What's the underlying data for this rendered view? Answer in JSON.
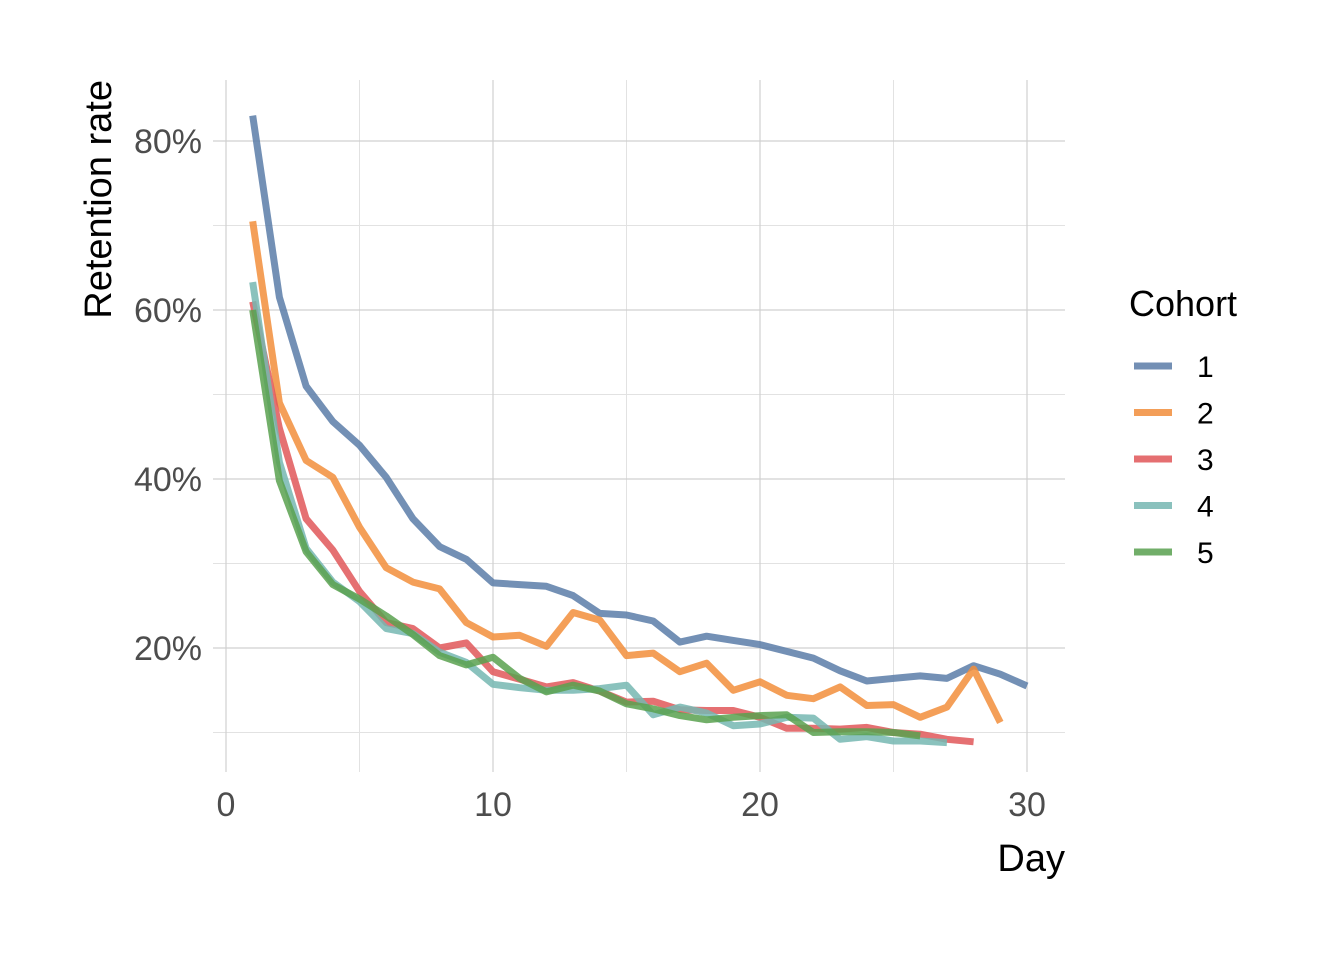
{
  "chart_data": {
    "type": "line",
    "xlabel": "Day",
    "ylabel": "Retention rate",
    "xlim": [
      0,
      31
    ],
    "ylim": [
      0.05,
      0.87
    ],
    "x_ticks": [
      0,
      10,
      20,
      30
    ],
    "x_tick_labels": [
      "0",
      "10",
      "20",
      "30"
    ],
    "y_ticks": [
      0.2,
      0.4,
      0.6,
      0.8
    ],
    "y_tick_labels": [
      "20%",
      "40%",
      "60%",
      "80%"
    ],
    "grid": true,
    "legend": {
      "title": "Cohort",
      "position": "right"
    },
    "series": [
      {
        "name": "1",
        "color": "#5b7ca8",
        "x": [
          1,
          2,
          3,
          4,
          5,
          6,
          7,
          8,
          9,
          10,
          11,
          12,
          13,
          14,
          15,
          16,
          17,
          18,
          19,
          20,
          21,
          22,
          23,
          24,
          25,
          26,
          27,
          28,
          29,
          30
        ],
        "y": [
          0.83,
          0.615,
          0.51,
          0.468,
          0.44,
          0.402,
          0.353,
          0.32,
          0.305,
          0.277,
          0.275,
          0.273,
          0.262,
          0.241,
          0.239,
          0.232,
          0.207,
          0.214,
          0.209,
          0.204,
          0.196,
          0.188,
          0.173,
          0.161,
          0.164,
          0.167,
          0.164,
          0.179,
          0.169,
          0.155
        ]
      },
      {
        "name": "2",
        "color": "#f28e3b",
        "x": [
          1,
          2,
          3,
          4,
          5,
          6,
          7,
          8,
          9,
          10,
          11,
          12,
          13,
          14,
          15,
          16,
          17,
          18,
          19,
          20,
          21,
          22,
          23,
          24,
          25,
          26,
          27,
          28,
          29
        ],
        "y": [
          0.705,
          0.49,
          0.422,
          0.402,
          0.343,
          0.295,
          0.278,
          0.27,
          0.23,
          0.213,
          0.215,
          0.202,
          0.242,
          0.233,
          0.191,
          0.194,
          0.172,
          0.182,
          0.15,
          0.16,
          0.144,
          0.14,
          0.154,
          0.132,
          0.133,
          0.118,
          0.13,
          0.175,
          0.112
        ]
      },
      {
        "name": "3",
        "color": "#e15759",
        "x": [
          1,
          2,
          3,
          4,
          5,
          6,
          7,
          8,
          9,
          10,
          11,
          12,
          13,
          14,
          15,
          16,
          17,
          18,
          19,
          20,
          21,
          22,
          23,
          24,
          25,
          26,
          27,
          28
        ],
        "y": [
          0.61,
          0.46,
          0.353,
          0.316,
          0.267,
          0.23,
          0.223,
          0.2,
          0.206,
          0.172,
          0.163,
          0.154,
          0.159,
          0.149,
          0.136,
          0.137,
          0.127,
          0.126,
          0.126,
          0.118,
          0.105,
          0.105,
          0.104,
          0.106,
          0.1,
          0.098,
          0.092,
          0.089
        ]
      },
      {
        "name": "4",
        "color": "#76b7b2",
        "x": [
          1,
          2,
          3,
          4,
          5,
          6,
          7,
          8,
          9,
          10,
          11,
          12,
          13,
          14,
          15,
          16,
          17,
          18,
          19,
          20,
          21,
          22,
          23,
          24,
          25,
          26,
          27
        ],
        "y": [
          0.633,
          0.42,
          0.318,
          0.278,
          0.255,
          0.223,
          0.217,
          0.195,
          0.183,
          0.157,
          0.153,
          0.15,
          0.15,
          0.152,
          0.156,
          0.121,
          0.13,
          0.123,
          0.108,
          0.11,
          0.118,
          0.117,
          0.092,
          0.095,
          0.09,
          0.09,
          0.088
        ]
      },
      {
        "name": "5",
        "color": "#59a14f",
        "x": [
          1,
          2,
          3,
          4,
          5,
          6,
          7,
          8,
          9,
          10,
          11,
          12,
          13,
          14,
          15,
          16,
          17,
          18,
          19,
          20,
          21,
          22,
          23,
          24,
          25,
          26
        ],
        "y": [
          0.6,
          0.398,
          0.314,
          0.275,
          0.258,
          0.238,
          0.216,
          0.191,
          0.18,
          0.189,
          0.164,
          0.148,
          0.156,
          0.149,
          0.134,
          0.128,
          0.12,
          0.115,
          0.118,
          0.12,
          0.121,
          0.1,
          0.101,
          0.101,
          0.1,
          0.096
        ]
      }
    ]
  }
}
